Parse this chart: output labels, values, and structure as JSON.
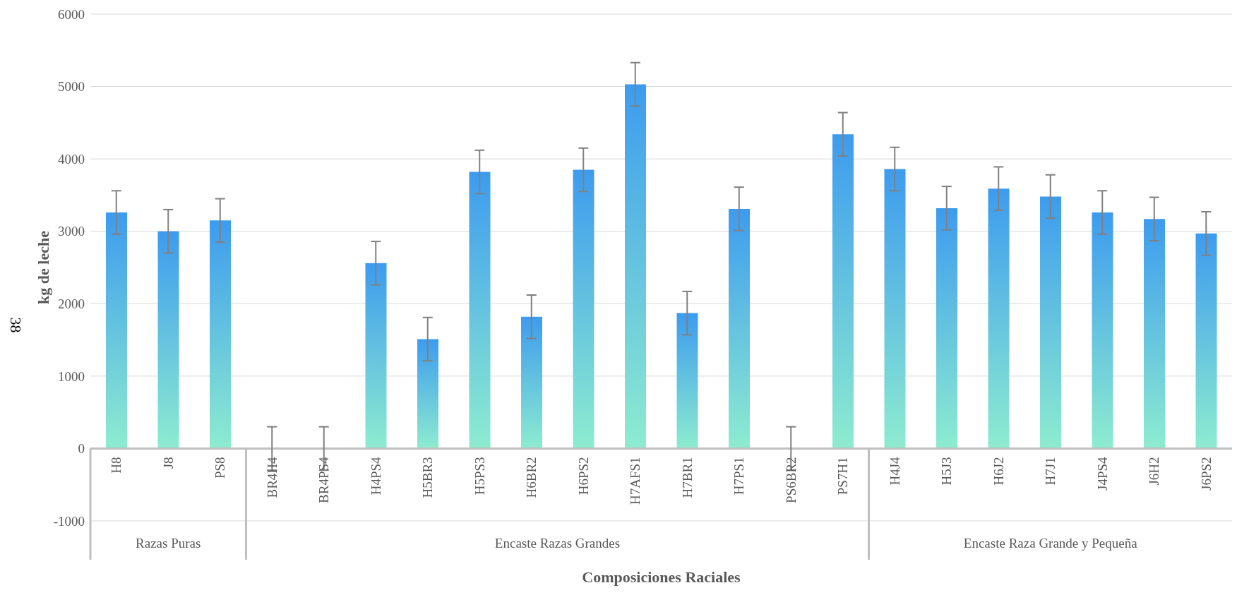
{
  "chart_data": {
    "type": "bar",
    "xlabel": "Composiciones Raciales",
    "ylabel": "kg de leche",
    "categories": [
      "H8",
      "J8",
      "PS8",
      "BR4H4",
      "BR4PS4",
      "H4PS4",
      "H5BR3",
      "H5PS3",
      "H6BR2",
      "H6PS2",
      "H7AFS1",
      "H7BR1",
      "H7PS1",
      "PS6BR2",
      "PS7H1",
      "H4J4",
      "H5J3",
      "H6J2",
      "H7J1",
      "J4PS4",
      "J6H2",
      "J6PS2"
    ],
    "values": [
      3260,
      3000,
      3150,
      0,
      0,
      2560,
      1510,
      3820,
      1820,
      3850,
      5030,
      1870,
      3310,
      0,
      4340,
      3860,
      3320,
      3590,
      3480,
      3260,
      3170,
      2970
    ],
    "errors": [
      300,
      300,
      300,
      300,
      300,
      300,
      300,
      300,
      300,
      300,
      300,
      300,
      300,
      300,
      300,
      300,
      300,
      300,
      300,
      300,
      300,
      300
    ],
    "color": "#3d9bef",
    "ylim": [
      -1000,
      6000
    ],
    "yticks": [
      -1000,
      0,
      1000,
      2000,
      3000,
      4000,
      5000,
      6000
    ],
    "grid": "y",
    "annotations": [
      "Razas Puras",
      "Encaste Razas Grandes",
      "Encaste Raza Grande y Pequeña",
      "38"
    ]
  }
}
